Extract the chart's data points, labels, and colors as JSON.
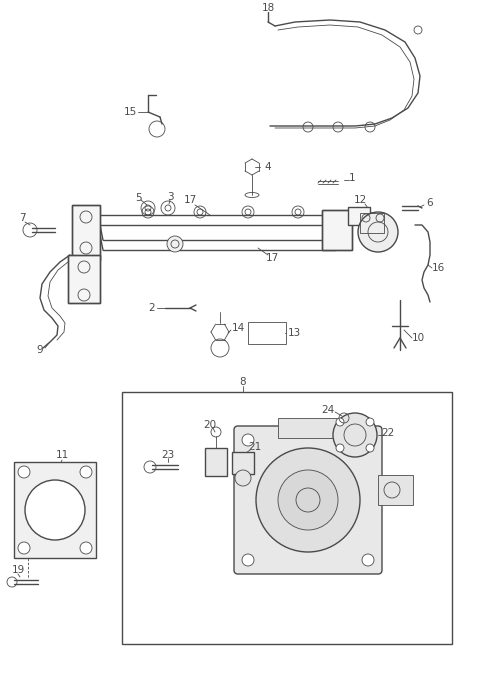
{
  "bg_color": "#ffffff",
  "line_color": "#4a4a4a",
  "fig_width": 4.8,
  "fig_height": 6.85,
  "dpi": 100,
  "lw": 1.0,
  "tlw": 0.6,
  "fs": 7.5
}
